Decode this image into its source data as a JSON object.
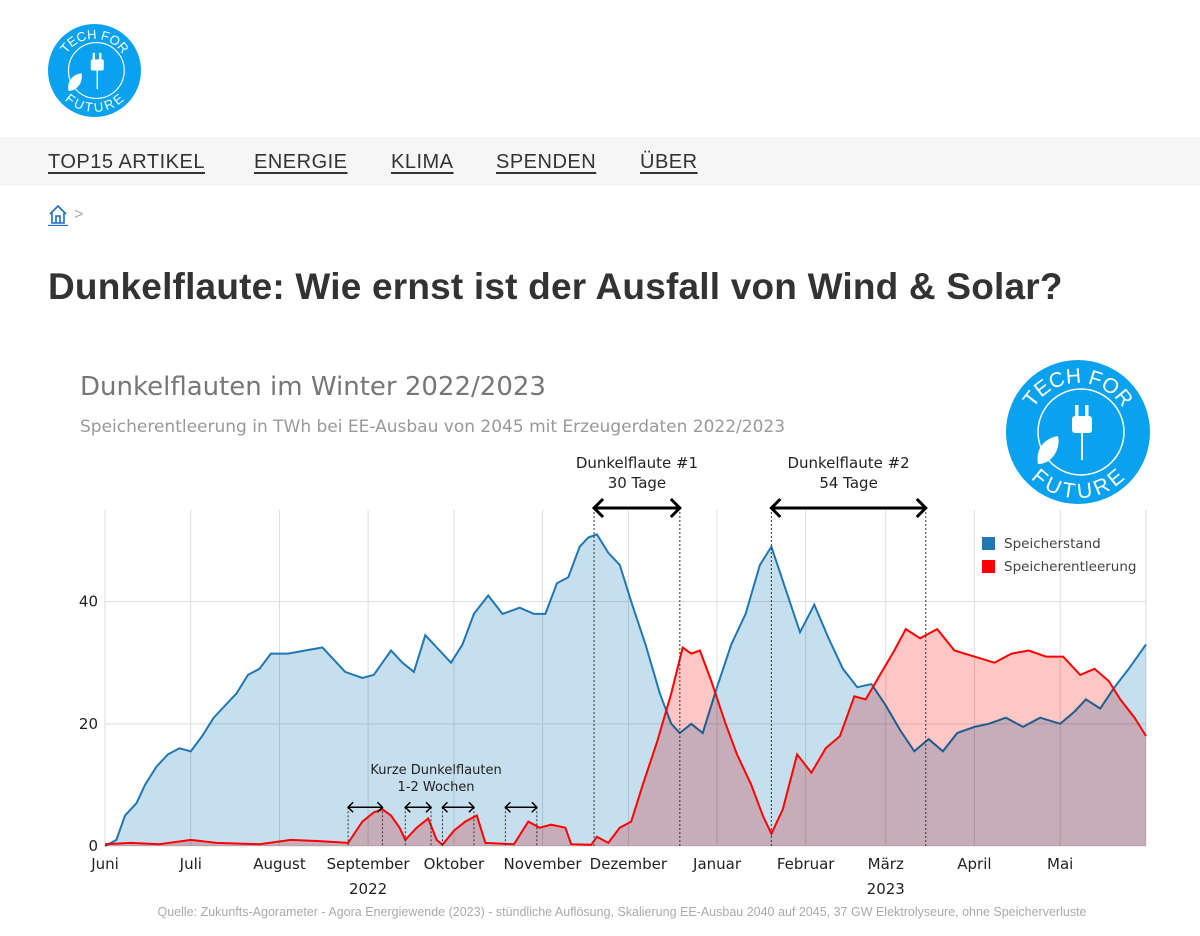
{
  "logo": {
    "text_top": "TECH FOR",
    "text_bottom": "FUTURE",
    "color": "#0aa2ef"
  },
  "nav": {
    "items": [
      {
        "label": "TOP15 ARTIKEL"
      },
      {
        "label": "ENERGIE"
      },
      {
        "label": "KLIMA"
      },
      {
        "label": "SPENDEN"
      },
      {
        "label": "ÜBER"
      }
    ]
  },
  "breadcrumb": {
    "separator": ">"
  },
  "page_title": "Dunkelflaute: Wie ernst ist der Ausfall von Wind & Solar?",
  "chart_data": {
    "type": "area",
    "title": "Dunkelflauten im Winter 2022/2023",
    "subtitle": "Speicherentleerung in TWh bei EE-Ausbau von 2045 mit Erzeugerdaten 2022/2023",
    "source": "Quelle: Zukunfts-Agorameter - Agora Energiewende (2023) - stündliche Auflösung, Skalierung EE-Ausbau 2040 auf 2045, 37 GW Elektrolyseure, ohne Speicherverluste",
    "xlim": [
      "2022-06-01",
      "2023-05-31"
    ],
    "ylim": [
      0,
      55
    ],
    "grid": true,
    "legend_position": "top-right",
    "y_ticks": [
      {
        "value": 0,
        "label": "0"
      },
      {
        "value": 20,
        "label": "20"
      },
      {
        "value": 40,
        "label": "40"
      }
    ],
    "x_ticks": [
      {
        "date": "2022-06-01",
        "label": "Juni"
      },
      {
        "date": "2022-07-01",
        "label": "Juli"
      },
      {
        "date": "2022-08-01",
        "label": "August"
      },
      {
        "date": "2022-09-01",
        "label": "September"
      },
      {
        "date": "2022-10-01",
        "label": "Oktober"
      },
      {
        "date": "2022-11-01",
        "label": "November"
      },
      {
        "date": "2022-12-01",
        "label": "Dezember"
      },
      {
        "date": "2023-01-01",
        "label": "Januar"
      },
      {
        "date": "2023-02-01",
        "label": "Februar"
      },
      {
        "date": "2023-03-01",
        "label": "März"
      },
      {
        "date": "2023-04-01",
        "label": "April"
      },
      {
        "date": "2023-05-01",
        "label": "Mai"
      }
    ],
    "year_labels": [
      {
        "date": "2022-09-01",
        "label": "2022"
      },
      {
        "date": "2023-03-01",
        "label": "2023"
      }
    ],
    "series": [
      {
        "name": "Speicherstand",
        "color": "#1f77b4",
        "fill": "#b3d4e8",
        "points": [
          [
            "2022-06-01",
            0
          ],
          [
            "2022-06-05",
            1
          ],
          [
            "2022-06-08",
            5
          ],
          [
            "2022-06-12",
            7
          ],
          [
            "2022-06-15",
            10
          ],
          [
            "2022-06-19",
            13
          ],
          [
            "2022-06-23",
            15
          ],
          [
            "2022-06-27",
            16
          ],
          [
            "2022-07-01",
            15.5
          ],
          [
            "2022-07-05",
            18
          ],
          [
            "2022-07-09",
            21
          ],
          [
            "2022-07-13",
            23
          ],
          [
            "2022-07-17",
            25
          ],
          [
            "2022-07-21",
            28
          ],
          [
            "2022-07-25",
            29
          ],
          [
            "2022-07-29",
            31.5
          ],
          [
            "2022-08-04",
            31.5
          ],
          [
            "2022-08-10",
            32
          ],
          [
            "2022-08-16",
            32.5
          ],
          [
            "2022-08-19",
            31
          ],
          [
            "2022-08-24",
            28.5
          ],
          [
            "2022-08-30",
            27.5
          ],
          [
            "2022-09-03",
            28
          ],
          [
            "2022-09-09",
            32
          ],
          [
            "2022-09-13",
            30
          ],
          [
            "2022-09-17",
            28.5
          ],
          [
            "2022-09-21",
            34.5
          ],
          [
            "2022-09-26",
            32
          ],
          [
            "2022-09-30",
            30
          ],
          [
            "2022-10-04",
            33
          ],
          [
            "2022-10-08",
            38
          ],
          [
            "2022-10-13",
            41
          ],
          [
            "2022-10-18",
            38
          ],
          [
            "2022-10-24",
            39
          ],
          [
            "2022-10-29",
            38
          ],
          [
            "2022-11-02",
            38
          ],
          [
            "2022-11-06",
            43
          ],
          [
            "2022-11-10",
            44
          ],
          [
            "2022-11-14",
            49
          ],
          [
            "2022-11-17",
            50.5
          ],
          [
            "2022-11-20",
            51
          ],
          [
            "2022-11-24",
            48
          ],
          [
            "2022-11-28",
            46
          ],
          [
            "2022-12-02",
            40
          ],
          [
            "2022-12-07",
            33
          ],
          [
            "2022-12-12",
            25
          ],
          [
            "2022-12-16",
            20
          ],
          [
            "2022-12-19",
            18.5
          ],
          [
            "2022-12-23",
            20
          ],
          [
            "2022-12-27",
            18.5
          ],
          [
            "2023-01-01",
            26
          ],
          [
            "2023-01-06",
            33
          ],
          [
            "2023-01-11",
            38
          ],
          [
            "2023-01-16",
            46
          ],
          [
            "2023-01-20",
            49
          ],
          [
            "2023-01-25",
            42
          ],
          [
            "2023-01-30",
            35
          ],
          [
            "2023-02-04",
            39.5
          ],
          [
            "2023-02-09",
            34
          ],
          [
            "2023-02-14",
            29
          ],
          [
            "2023-02-19",
            26
          ],
          [
            "2023-02-24",
            26.5
          ],
          [
            "2023-03-01",
            23
          ],
          [
            "2023-03-06",
            19
          ],
          [
            "2023-03-11",
            15.5
          ],
          [
            "2023-03-16",
            17.5
          ],
          [
            "2023-03-21",
            15.5
          ],
          [
            "2023-03-26",
            18.5
          ],
          [
            "2023-04-01",
            19.5
          ],
          [
            "2023-04-06",
            20
          ],
          [
            "2023-04-12",
            21
          ],
          [
            "2023-04-18",
            19.5
          ],
          [
            "2023-04-24",
            21
          ],
          [
            "2023-05-01",
            20
          ],
          [
            "2023-05-06",
            22
          ],
          [
            "2023-05-10",
            24
          ],
          [
            "2023-05-15",
            22.5
          ],
          [
            "2023-05-20",
            26
          ],
          [
            "2023-05-25",
            29
          ],
          [
            "2023-05-31",
            33
          ]
        ]
      },
      {
        "name": "Speicherentleerung",
        "color": "#ff0000",
        "fill": "#ffb3b3",
        "points": [
          [
            "2022-06-01",
            0.3
          ],
          [
            "2022-06-10",
            0.5
          ],
          [
            "2022-06-20",
            0.3
          ],
          [
            "2022-07-01",
            1
          ],
          [
            "2022-07-10",
            0.5
          ],
          [
            "2022-07-25",
            0.3
          ],
          [
            "2022-08-05",
            1
          ],
          [
            "2022-08-15",
            0.8
          ],
          [
            "2022-08-25",
            0.5
          ],
          [
            "2022-08-30",
            4
          ],
          [
            "2022-09-03",
            5.5
          ],
          [
            "2022-09-06",
            6
          ],
          [
            "2022-09-09",
            5
          ],
          [
            "2022-09-12",
            3
          ],
          [
            "2022-09-14",
            1
          ],
          [
            "2022-09-18",
            3
          ],
          [
            "2022-09-22",
            4.5
          ],
          [
            "2022-09-25",
            1
          ],
          [
            "2022-09-27",
            0.2
          ],
          [
            "2022-10-01",
            2.5
          ],
          [
            "2022-10-05",
            4
          ],
          [
            "2022-10-09",
            5
          ],
          [
            "2022-10-12",
            0.5
          ],
          [
            "2022-10-22",
            0.3
          ],
          [
            "2022-10-27",
            4
          ],
          [
            "2022-10-31",
            3
          ],
          [
            "2022-11-04",
            3.5
          ],
          [
            "2022-11-09",
            3
          ],
          [
            "2022-11-11",
            0.3
          ],
          [
            "2022-11-18",
            0.2
          ],
          [
            "2022-11-20",
            1.5
          ],
          [
            "2022-11-24",
            0.5
          ],
          [
            "2022-11-28",
            3
          ],
          [
            "2022-12-02",
            4
          ],
          [
            "2022-12-06",
            10
          ],
          [
            "2022-12-11",
            17
          ],
          [
            "2022-12-16",
            25
          ],
          [
            "2022-12-20",
            32.5
          ],
          [
            "2022-12-23",
            31.5
          ],
          [
            "2022-12-26",
            32
          ],
          [
            "2022-12-30",
            27
          ],
          [
            "2023-01-04",
            20
          ],
          [
            "2023-01-08",
            15
          ],
          [
            "2023-01-13",
            10
          ],
          [
            "2023-01-17",
            5
          ],
          [
            "2023-01-20",
            2
          ],
          [
            "2023-01-24",
            6
          ],
          [
            "2023-01-29",
            15
          ],
          [
            "2023-02-03",
            12
          ],
          [
            "2023-02-08",
            16
          ],
          [
            "2023-02-13",
            18
          ],
          [
            "2023-02-18",
            24.5
          ],
          [
            "2023-02-22",
            24
          ],
          [
            "2023-02-27",
            28
          ],
          [
            "2023-03-04",
            32
          ],
          [
            "2023-03-08",
            35.5
          ],
          [
            "2023-03-13",
            34
          ],
          [
            "2023-03-19",
            35.5
          ],
          [
            "2023-03-25",
            32
          ],
          [
            "2023-04-01",
            31
          ],
          [
            "2023-04-08",
            30
          ],
          [
            "2023-04-14",
            31.5
          ],
          [
            "2023-04-20",
            32
          ],
          [
            "2023-04-26",
            31
          ],
          [
            "2023-05-02",
            31
          ],
          [
            "2023-05-08",
            28
          ],
          [
            "2023-05-13",
            29
          ],
          [
            "2023-05-18",
            27
          ],
          [
            "2023-05-22",
            24
          ],
          [
            "2023-05-27",
            21
          ],
          [
            "2023-05-31",
            18
          ]
        ]
      }
    ],
    "annotations": [
      {
        "label_lines": [
          "Dunkelflaute #1",
          "30 Tage"
        ],
        "start": "2022-11-19",
        "end": "2022-12-19",
        "level": 55,
        "major": true
      },
      {
        "label_lines": [
          "Dunkelflaute #2",
          "54 Tage"
        ],
        "start": "2023-01-20",
        "end": "2023-03-15",
        "level": 55,
        "major": true
      },
      {
        "label_lines": [
          "Kurze Dunkelflauten",
          "1-2 Wochen"
        ],
        "start": "2022-08-25",
        "end": "2022-11-05",
        "level": 7,
        "major": false,
        "ranges": [
          [
            "2022-08-25",
            "2022-09-06"
          ],
          [
            "2022-09-14",
            "2022-09-23"
          ],
          [
            "2022-09-27",
            "2022-10-08"
          ],
          [
            "2022-10-19",
            "2022-10-30"
          ]
        ]
      }
    ]
  }
}
